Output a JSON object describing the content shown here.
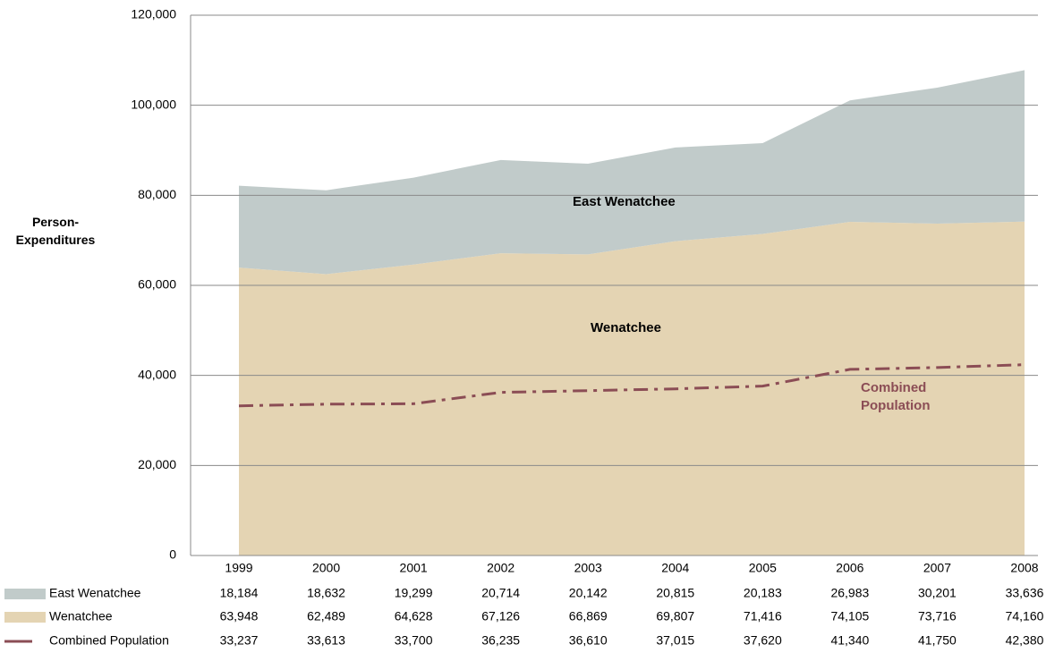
{
  "chart_data": {
    "type": "stacked-area",
    "y_label": "Person-Expenditures",
    "categories": [
      "1999",
      "2000",
      "2001",
      "2002",
      "2003",
      "2004",
      "2005",
      "2006",
      "2007",
      "2008"
    ],
    "series": [
      {
        "name": "East Wenatchee",
        "color": "#c1cbca",
        "stack": true,
        "values": [
          18184,
          18632,
          19299,
          20714,
          20142,
          20815,
          20183,
          26983,
          30201,
          33636
        ],
        "value_labels": [
          "18,184",
          "18,632",
          "19,299",
          "20,714",
          "20,142",
          "20,815",
          "20,183",
          "26,983",
          "30,201",
          "33,636"
        ]
      },
      {
        "name": "Wenatchee",
        "color": "#e4d4b3",
        "stack": true,
        "values": [
          63948,
          62489,
          64628,
          67126,
          66869,
          69807,
          71416,
          74105,
          73716,
          74160
        ],
        "value_labels": [
          "63,948",
          "62,489",
          "64,628",
          "67,126",
          "66,869",
          "69,807",
          "71,416",
          "74,105",
          "73,716",
          "74,160"
        ]
      },
      {
        "name": "Combined Population",
        "color": "#8b4d55",
        "stack": false,
        "values": [
          33237,
          33613,
          33700,
          36235,
          36610,
          37015,
          37620,
          41340,
          41750,
          42380
        ],
        "value_labels": [
          "33,237",
          "33,613",
          "33,700",
          "36,235",
          "36,610",
          "37,015",
          "37,620",
          "41,340",
          "41,750",
          "42,380"
        ]
      }
    ],
    "ylim": [
      0,
      120000
    ],
    "yticks": [
      0,
      {
        "value": 20000,
        "label": "20,000"
      },
      {
        "value": 40000,
        "label": "40,000"
      },
      {
        "value": 60000,
        "label": "60,000"
      },
      {
        "value": 80000,
        "label": "80,000"
      },
      {
        "value": 100000,
        "label": "100,000"
      },
      {
        "value": 120000,
        "label": "120,000"
      }
    ],
    "grid": true
  }
}
